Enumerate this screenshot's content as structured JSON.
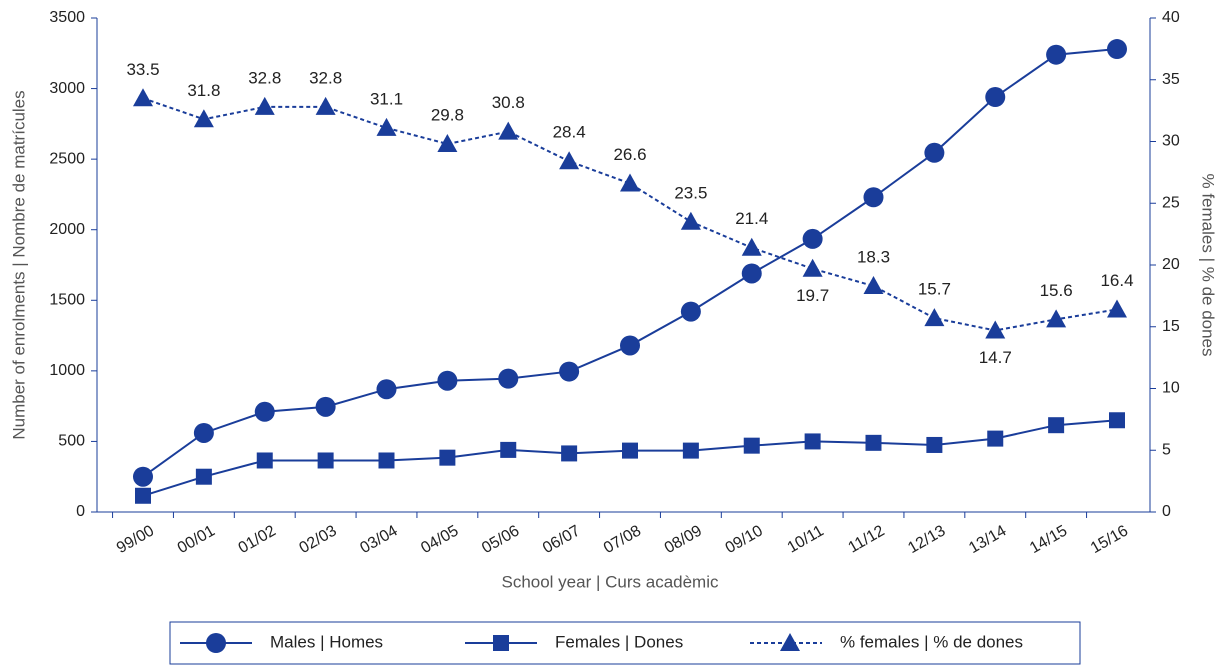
{
  "chart_data": {
    "type": "line",
    "x_label": "School year | Curs acadèmic",
    "y_label": "Number of enrolments | Nombre de matrícules",
    "y2_label": "% females | % de dones",
    "categories": [
      "99/00",
      "00/01",
      "01/02",
      "02/03",
      "03/04",
      "04/05",
      "05/06",
      "06/07",
      "07/08",
      "08/09",
      "09/10",
      "10/11",
      "11/12",
      "12/13",
      "13/14",
      "14/15",
      "15/16"
    ],
    "series": [
      {
        "name": "Males | Homes",
        "color": "#1a3d9a",
        "marker": "circle",
        "line_style": "solid",
        "axis": "y",
        "values": [
          250,
          560,
          710,
          745,
          870,
          930,
          945,
          995,
          1180,
          1420,
          1690,
          1935,
          2230,
          2545,
          2940,
          3240,
          3280
        ]
      },
      {
        "name": "Females | Dones",
        "color": "#1a3d9a",
        "marker": "square",
        "line_style": "solid",
        "axis": "y",
        "values": [
          115,
          250,
          365,
          365,
          365,
          385,
          440,
          415,
          435,
          435,
          470,
          500,
          490,
          475,
          520,
          615,
          650
        ]
      },
      {
        "name": "% females | % de dones",
        "color": "#1a3d9a",
        "marker": "triangle",
        "line_style": "dotted",
        "axis": "y2",
        "data_labels": true,
        "values": [
          33.5,
          31.8,
          32.8,
          32.8,
          31.1,
          29.8,
          30.8,
          28.4,
          26.6,
          23.5,
          21.4,
          19.7,
          18.3,
          15.7,
          14.7,
          15.6,
          16.4
        ]
      }
    ],
    "ylim": [
      0,
      3500
    ],
    "yticks": [
      0,
      500,
      1000,
      1500,
      2000,
      2500,
      3000,
      3500
    ],
    "y2lim": [
      0,
      40
    ],
    "y2ticks": [
      0,
      5,
      10,
      15,
      20,
      25,
      30,
      35,
      40
    ],
    "grid": false,
    "legend": "bottom",
    "axis_color": "#1a3d9a"
  }
}
